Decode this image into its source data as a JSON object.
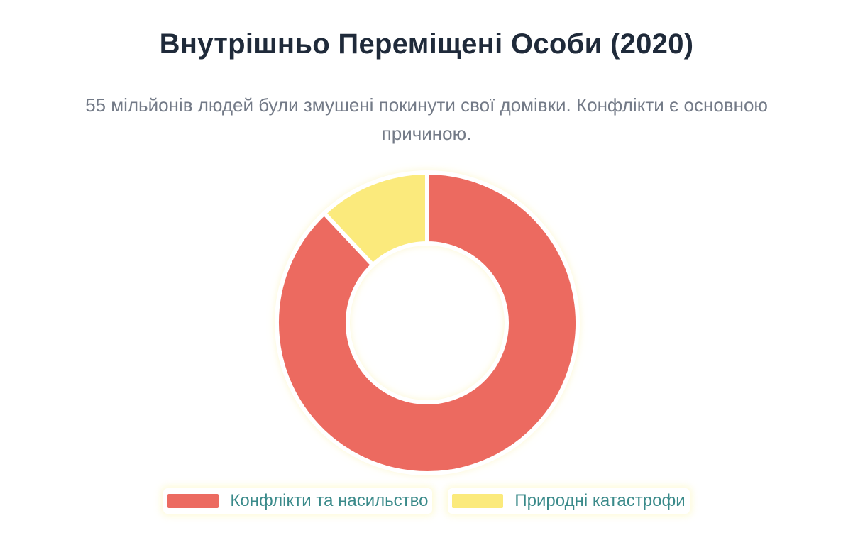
{
  "header": {
    "title": "Внутрішньо Переміщені Особи (2020)",
    "subtitle": "55 мільйонів людей були змушені покинути свої домівки. Конфлікти є основною причиною."
  },
  "chart_data": {
    "type": "pie",
    "variant": "doughnut",
    "title": "Внутрішньо Переміщені Особи (2020)",
    "subtitle": "55 мільйонів людей були змушені покинути свої домівки. Конфлікти є основною причиною.",
    "labels": [
      "Конфлікти та насильство",
      "Природні катастрофи"
    ],
    "values": [
      88,
      12
    ],
    "colors": [
      "#ec6b61",
      "#fbea7c"
    ],
    "legend_position": "bottom"
  }
}
